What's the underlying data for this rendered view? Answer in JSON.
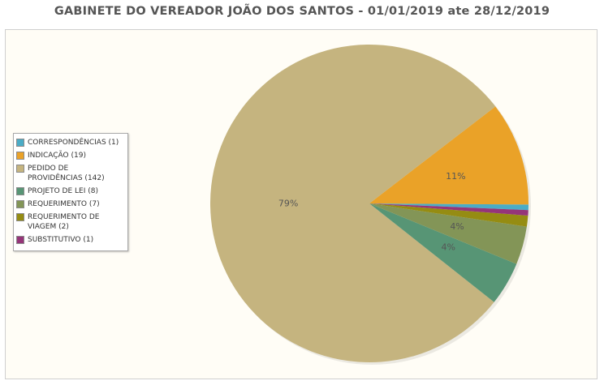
{
  "title": "GABINETE DO VEREADOR JOÃO DOS SANTOS - 01/01/2019 ate 28/12/2019",
  "chart_data": {
    "type": "pie",
    "title": "GABINETE DO VEREADOR JOÃO DOS SANTOS - 01/01/2019 ate 28/12/2019",
    "legend_position": "left",
    "slices": [
      {
        "label": "CORRESPONDÊNCIAS (1)",
        "name": "CORRESPONDÊNCIAS",
        "value": 1,
        "color": "#4bacc6",
        "pct_label": ""
      },
      {
        "label": "INDICAÇÃO (19)",
        "name": "INDICAÇÃO",
        "value": 19,
        "color": "#eaa228",
        "pct_label": "11%"
      },
      {
        "label": "PEDIDO DE PROVIDÊNCIAS (142)",
        "name": "PEDIDO DE PROVIDÊNCIAS",
        "value": 142,
        "color": "#c5b47f",
        "pct_label": "79%"
      },
      {
        "label": "PROJETO DE LEI (8)",
        "name": "PROJETO DE LEI",
        "value": 8,
        "color": "#579575",
        "pct_label": "4%"
      },
      {
        "label": "REQUERIMENTO (7)",
        "name": "REQUERIMENTO",
        "value": 7,
        "color": "#839557",
        "pct_label": "4%"
      },
      {
        "label": "REQUERIMENTO DE VIAGEM (2)",
        "name": "REQUERIMENTO DE VIAGEM",
        "value": 2,
        "color": "#958c12",
        "pct_label": ""
      },
      {
        "label": "SUBSTITUTIVO (1)",
        "name": "SUBSTITUTIVO",
        "value": 1,
        "color": "#953579",
        "pct_label": ""
      }
    ]
  }
}
